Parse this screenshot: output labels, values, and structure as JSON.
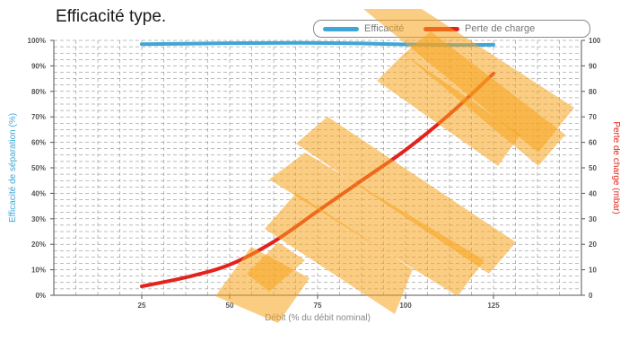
{
  "chart_data": {
    "type": "line",
    "title": "Efficacité type.",
    "xlabel": "Débit (% du débit nominal)",
    "ylabel_left": "Efficacité de séparation (%)",
    "ylabel_right": "Perte de charge (mbar)",
    "xlim": [
      0,
      150
    ],
    "xticks": [
      25,
      50,
      75,
      100,
      125
    ],
    "ylim_left": [
      0,
      100
    ],
    "yticks_left": [
      "0%",
      "10%",
      "20%",
      "30%",
      "40%",
      "50%",
      "60%",
      "70%",
      "80%",
      "90%",
      "100%"
    ],
    "ylim_right": [
      0,
      100
    ],
    "yticks_right": [
      "0",
      "10",
      "20",
      "30",
      "40",
      "50",
      "60",
      "70",
      "80",
      "90",
      "100"
    ],
    "grid": true,
    "legend_position": "top-right",
    "series": [
      {
        "name": "Efficacité",
        "axis": "left",
        "color": "#3ea7d8",
        "x": [
          25,
          37.5,
          50,
          62.5,
          75,
          87.5,
          100,
          112.5,
          125
        ],
        "y": [
          98.5,
          98.7,
          98.9,
          99,
          99,
          98.8,
          98.4,
          98.2,
          98.3
        ]
      },
      {
        "name": "Perte de charge",
        "axis": "right",
        "color": "#e3231b",
        "x": [
          25,
          37.5,
          50,
          62.5,
          75,
          87.5,
          100,
          112.5,
          125
        ],
        "y": [
          3.5,
          7,
          12,
          21,
          33,
          45,
          57,
          71,
          87
        ]
      }
    ],
    "colors": {
      "left_axis_label": "#3ea7d8",
      "right_axis_label": "#e3231b",
      "grid": "#7a7a7a",
      "watermark": "#f7a41d"
    }
  }
}
